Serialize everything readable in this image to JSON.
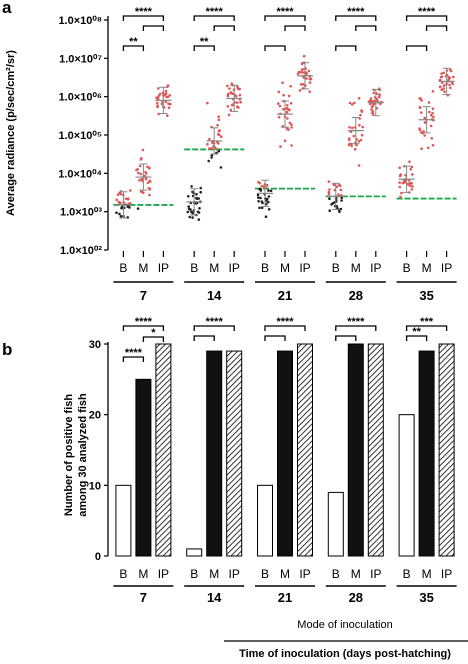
{
  "panel_a_letter": "a",
  "panel_b_letter": "b",
  "footer": {
    "mode_label": "Mode of inoculation",
    "time_label": "Time of inoculation (days post-hatching)"
  },
  "colors": {
    "median_red": "#d9534f",
    "threshold_green": "#1aa64a",
    "fish_black": "#222222",
    "fish_red": "#e05555",
    "bar_black": "#111111"
  },
  "chart_data": [
    {
      "type": "scatter",
      "panel": "a",
      "ylabel": "Average radiance (p/sec/cm²/sr)",
      "yscale": "log",
      "ylim": [
        100,
        100000000
      ],
      "ytick_labels": [
        "1.0×10⁰²",
        "1.0×10⁰³",
        "1.0×10⁰⁴",
        "1.0×10⁰⁵",
        "1.0×10⁰⁶",
        "1.0×10⁰⁷",
        "1.0×10⁰⁸"
      ],
      "categories": [
        "B",
        "M",
        "IP"
      ],
      "groups": [
        {
          "day": "7",
          "B": 1500,
          "M": 8000,
          "IP": 800000,
          "threshold": 1500
        },
        {
          "day": "14",
          "B": 1800,
          "M": 70000,
          "IP": 900000,
          "threshold": 42000
        },
        {
          "day": "21",
          "B": 3000,
          "M": 350000,
          "IP": 3500000,
          "threshold": 4000
        },
        {
          "day": "28",
          "B": 2500,
          "M": 130000,
          "IP": 700000,
          "threshold": 2500
        },
        {
          "day": "35",
          "B": 7000,
          "M": 250000,
          "IP": 2500000,
          "threshold": 2200
        }
      ],
      "significance": [
        {
          "day": "7",
          "brackets": [
            {
              "from": "B",
              "to": "IP",
              "label": "****"
            },
            {
              "from": "M",
              "to": "IP",
              "label": ""
            },
            {
              "from": "B",
              "to": "M",
              "label": "**"
            }
          ]
        },
        {
          "day": "14",
          "brackets": [
            {
              "from": "B",
              "to": "IP",
              "label": "****"
            },
            {
              "from": "M",
              "to": "IP",
              "label": ""
            },
            {
              "from": "B",
              "to": "M",
              "label": "**"
            }
          ]
        },
        {
          "day": "21",
          "brackets": [
            {
              "from": "B",
              "to": "IP",
              "label": "****"
            },
            {
              "from": "M",
              "to": "IP",
              "label": ""
            },
            {
              "from": "B",
              "to": "M",
              "label": ""
            }
          ]
        },
        {
          "day": "28",
          "brackets": [
            {
              "from": "B",
              "to": "IP",
              "label": "****"
            },
            {
              "from": "M",
              "to": "IP",
              "label": ""
            },
            {
              "from": "B",
              "to": "M",
              "label": ""
            }
          ]
        },
        {
          "day": "35",
          "brackets": [
            {
              "from": "B",
              "to": "IP",
              "label": "****"
            },
            {
              "from": "M",
              "to": "IP",
              "label": ""
            },
            {
              "from": "B",
              "to": "M",
              "label": ""
            }
          ]
        }
      ]
    },
    {
      "type": "bar",
      "panel": "b",
      "ylabel": "Number of positive fish among 30 analyzed fish",
      "ylabel_lines": [
        "Number of positive fish",
        "among 30 analyzed fish"
      ],
      "ylim": [
        0,
        30
      ],
      "yticks": [
        "0",
        "10",
        "20",
        "30"
      ],
      "categories": [
        "B",
        "M",
        "IP"
      ],
      "bar_fills": {
        "B": "white",
        "M": "black",
        "IP": "hatched"
      },
      "groups": [
        {
          "day": "7",
          "values": [
            10,
            25,
            30
          ]
        },
        {
          "day": "14",
          "values": [
            1,
            29,
            29
          ]
        },
        {
          "day": "21",
          "values": [
            10,
            29,
            30
          ]
        },
        {
          "day": "28",
          "values": [
            9,
            30,
            30
          ]
        },
        {
          "day": "35",
          "values": [
            20,
            29,
            30
          ]
        }
      ],
      "significance": [
        {
          "day": "7",
          "brackets": [
            {
              "from": "B",
              "to": "IP",
              "label": "****"
            },
            {
              "from": "M",
              "to": "IP",
              "label": "*"
            },
            {
              "from": "B",
              "to": "M",
              "label": "****"
            }
          ]
        },
        {
          "day": "14",
          "brackets": [
            {
              "from": "B",
              "to": "IP",
              "label": "****"
            },
            {
              "from": "B",
              "to": "M",
              "label": ""
            }
          ]
        },
        {
          "day": "21",
          "brackets": [
            {
              "from": "B",
              "to": "IP",
              "label": "****"
            },
            {
              "from": "B",
              "to": "M",
              "label": ""
            }
          ]
        },
        {
          "day": "28",
          "brackets": [
            {
              "from": "B",
              "to": "IP",
              "label": "****"
            },
            {
              "from": "B",
              "to": "M",
              "label": ""
            }
          ]
        },
        {
          "day": "35",
          "brackets": [
            {
              "from": "B",
              "to": "IP",
              "label": "***"
            },
            {
              "from": "B",
              "to": "M",
              "label": "**"
            }
          ]
        }
      ]
    }
  ]
}
